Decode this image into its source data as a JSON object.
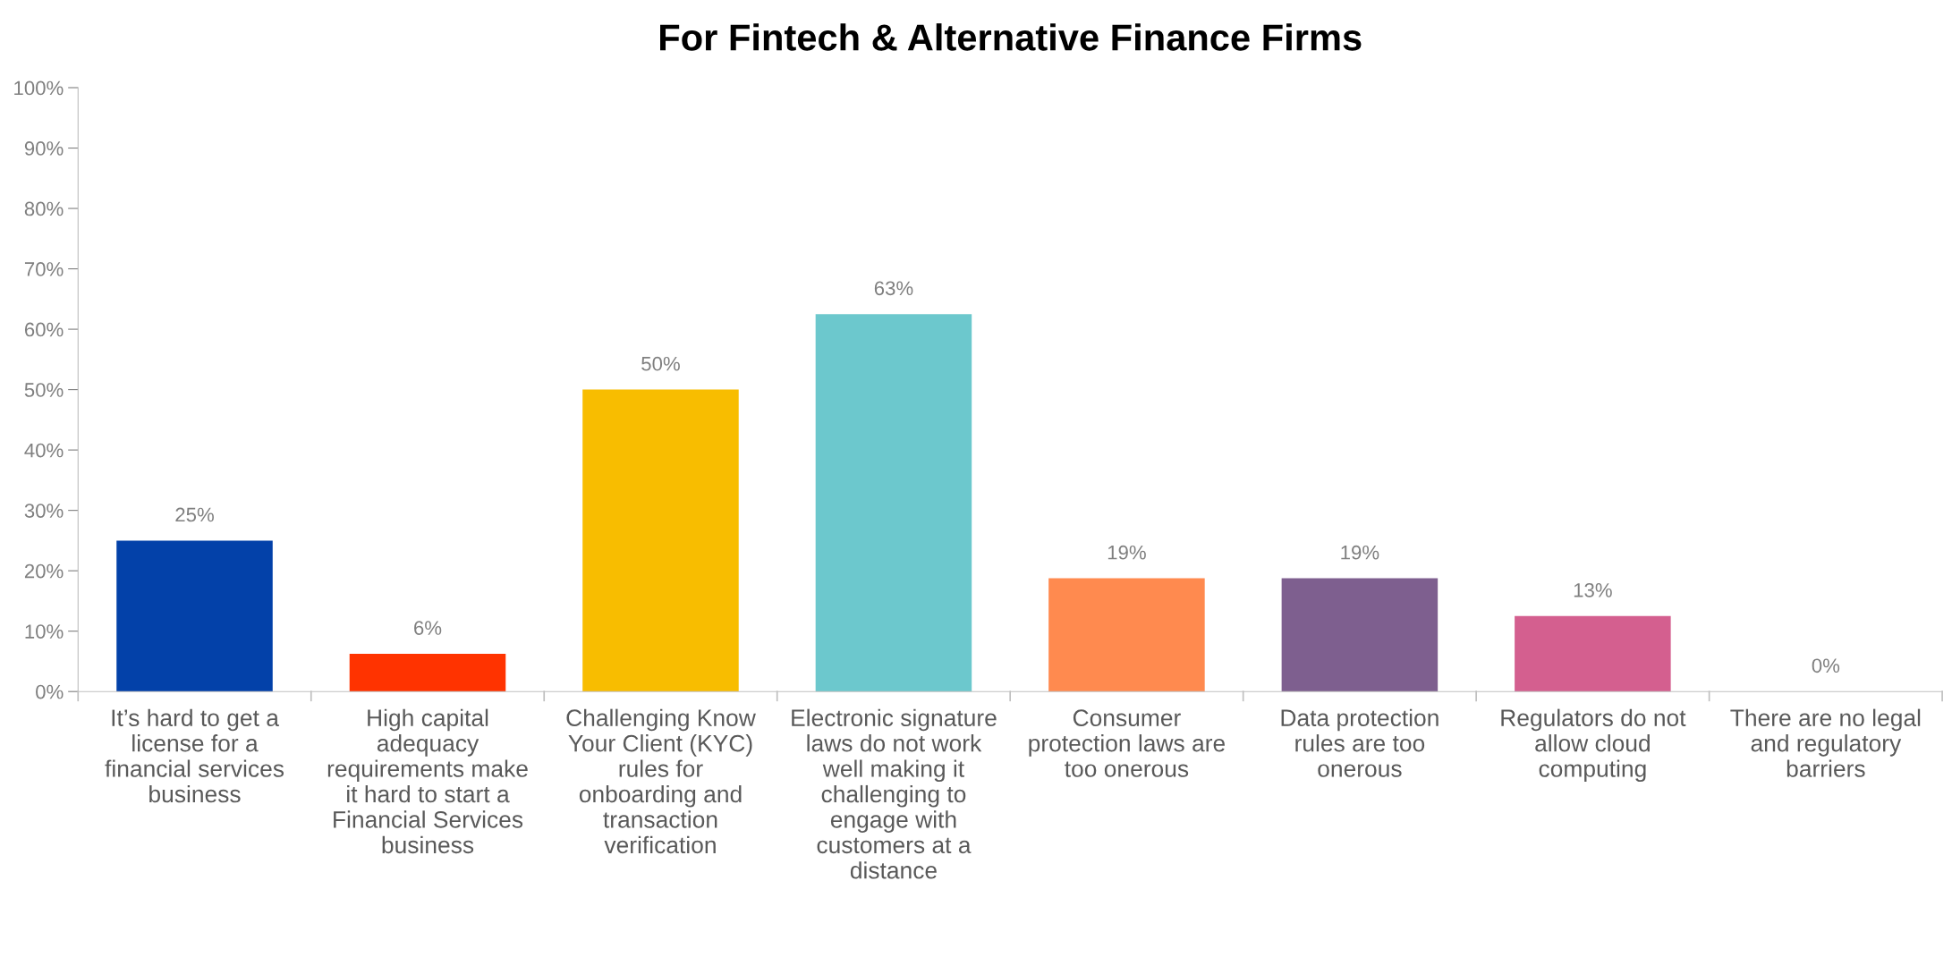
{
  "chart_data": {
    "type": "bar",
    "title": "For Fintech & Alternative Finance Firms",
    "categories": [
      "It’s hard to get a\nlicense for a\nfinancial services\nbusiness",
      "High capital\nadequacy\nrequirements make\nit hard to start a\nFinancial Services\nbusiness",
      "Challenging Know\nYour Client (KYC)\nrules for\nonboarding and\ntransaction\nverification",
      "Electronic signature\nlaws do not work\nwell making it\nchallenging to\nengage with\ncustomers at a\ndistance",
      "Consumer\nprotection laws are\ntoo onerous",
      "Data protection\nrules are too\nonerous",
      "Regulators do not\nallow cloud\ncomputing",
      "There are no legal\nand regulatory\nbarriers"
    ],
    "values": [
      25,
      6.25,
      50,
      62.5,
      18.75,
      18.75,
      12.5,
      0
    ],
    "value_labels": [
      "25%",
      "6%",
      "50%",
      "63%",
      "19%",
      "19%",
      "13%",
      "0%"
    ],
    "colors": [
      "#0341a9",
      "#ff3300",
      "#f8bd00",
      "#6cc8cd",
      "#ff8a4f",
      "#7e5f8f",
      "#d45f8f",
      "#a5a5a5"
    ],
    "ylim": [
      0,
      100
    ],
    "yticks": [
      {
        "value": 0,
        "label": "0%"
      },
      {
        "value": 10,
        "label": "10%"
      },
      {
        "value": 20,
        "label": "20%"
      },
      {
        "value": 30,
        "label": "30%"
      },
      {
        "value": 40,
        "label": "40%"
      },
      {
        "value": 50,
        "label": "50%"
      },
      {
        "value": 60,
        "label": "60%"
      },
      {
        "value": 70,
        "label": "70%"
      },
      {
        "value": 80,
        "label": "80%"
      },
      {
        "value": 90,
        "label": "90%"
      },
      {
        "value": 100,
        "label": "100%"
      }
    ],
    "grid": false,
    "legend": false
  }
}
